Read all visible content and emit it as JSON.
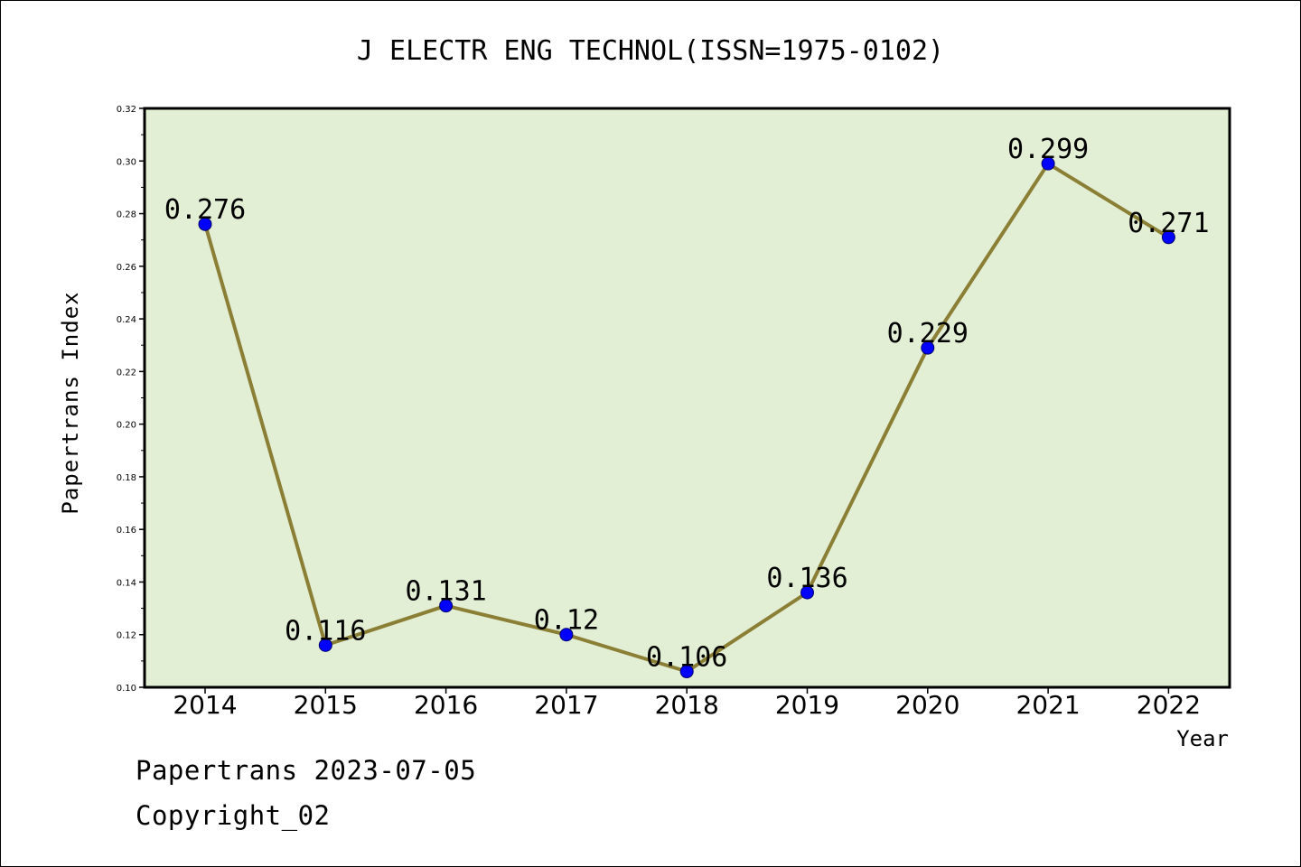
{
  "chart_data": {
    "type": "line",
    "title": "J ELECTR ENG TECHNOL(ISSN=1975-0102)",
    "xlabel": "Year",
    "ylabel": "Papertrans Index",
    "categories": [
      "2014",
      "2015",
      "2016",
      "2017",
      "2018",
      "2019",
      "2020",
      "2021",
      "2022"
    ],
    "series": [
      {
        "values": [
          0.276,
          0.116,
          0.131,
          0.12,
          0.106,
          0.136,
          0.229,
          0.299,
          0.271
        ]
      }
    ],
    "data_labels": [
      "0.276",
      "0.116",
      "0.131",
      "0.12",
      "0.106",
      "0.136",
      "0.229",
      "0.299",
      "0.271"
    ],
    "ylim": [
      0.1,
      0.32
    ],
    "yticks": [
      "0.10",
      "0.12",
      "0.14",
      "0.16",
      "0.18",
      "0.20",
      "0.22",
      "0.24",
      "0.26",
      "0.28",
      "0.30",
      "0.32"
    ],
    "grid": false,
    "colors": {
      "plot_bg": "#e2efd5",
      "line": "#8b7e35",
      "marker": "#0000ff"
    }
  },
  "footer": {
    "line1": "Papertrans 2023-07-05",
    "line2": "Copyright_02"
  }
}
